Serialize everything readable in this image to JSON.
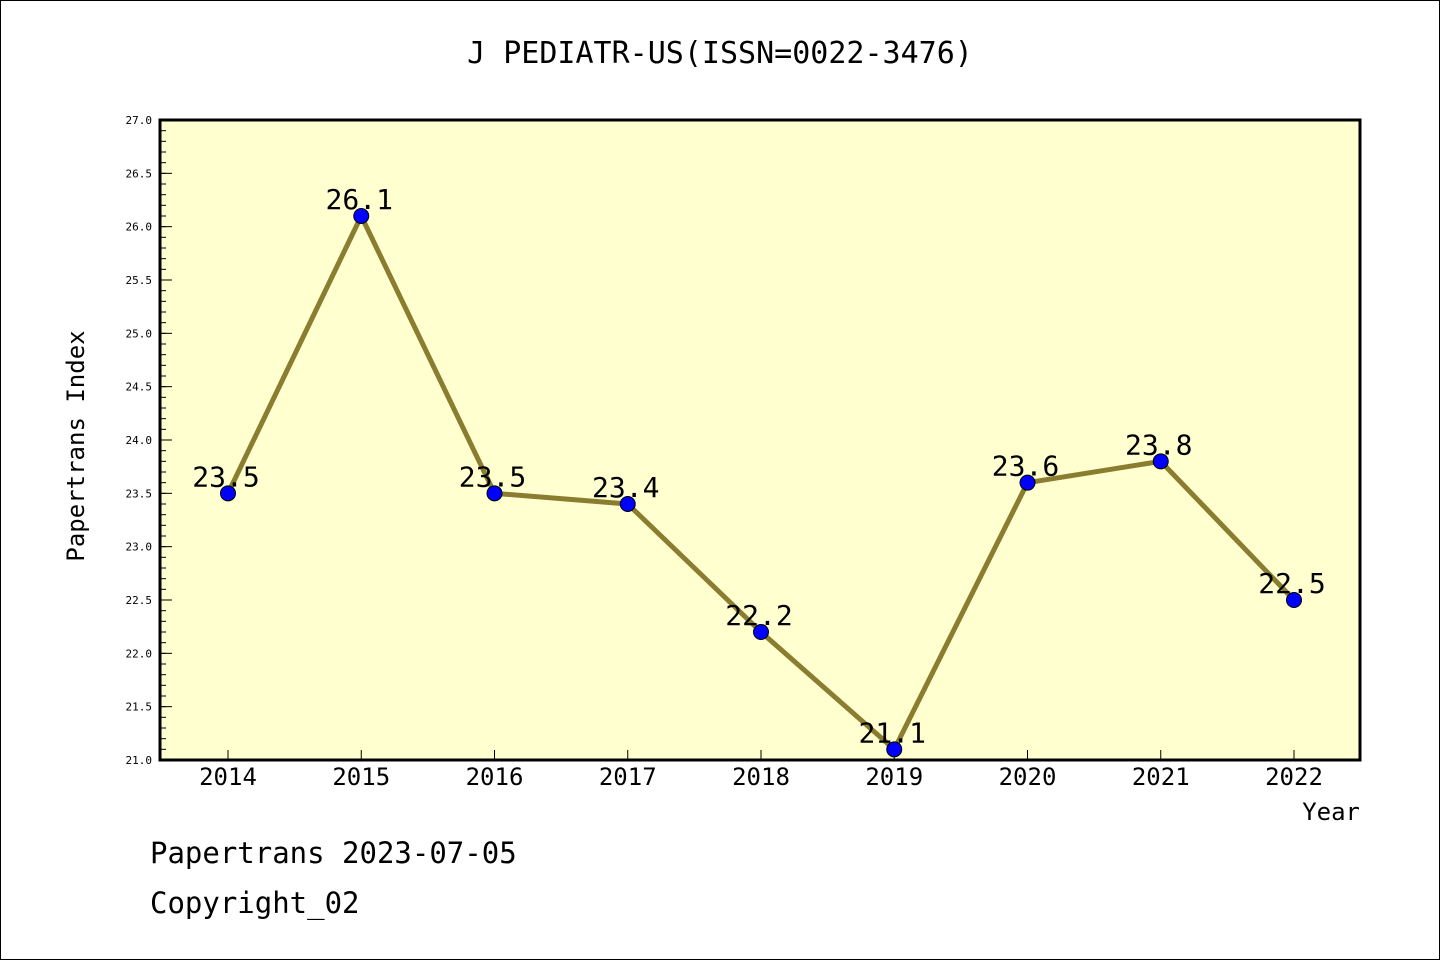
{
  "chart_data": {
    "type": "line",
    "title": "J PEDIATR-US(ISSN=0022-3476)",
    "xlabel": "Year",
    "ylabel": "Papertrans Index",
    "categories": [
      "2014",
      "2015",
      "2016",
      "2017",
      "2018",
      "2019",
      "2020",
      "2021",
      "2022"
    ],
    "values": [
      23.5,
      26.1,
      23.5,
      23.4,
      22.2,
      21.1,
      23.6,
      23.8,
      22.5
    ],
    "data_labels": [
      "23.5",
      "26.1",
      "23.5",
      "23.4",
      "22.2",
      "21.1",
      "23.6",
      "23.8",
      "22.5"
    ],
    "ylim": [
      21.0,
      27.0
    ],
    "yticks": [
      "21.0",
      "21.5",
      "22.0",
      "22.5",
      "23.0",
      "23.5",
      "24.0",
      "24.5",
      "25.0",
      "25.5",
      "26.0",
      "26.5",
      "27.0"
    ],
    "grid": false,
    "legend": "none",
    "colors": {
      "plot_background": "#ffffd0",
      "line": "#8b7d2f",
      "marker": "#0000ff"
    }
  },
  "footer": {
    "date_line": "Papertrans 2023-07-05",
    "copyright_line": "Copyright_02"
  }
}
